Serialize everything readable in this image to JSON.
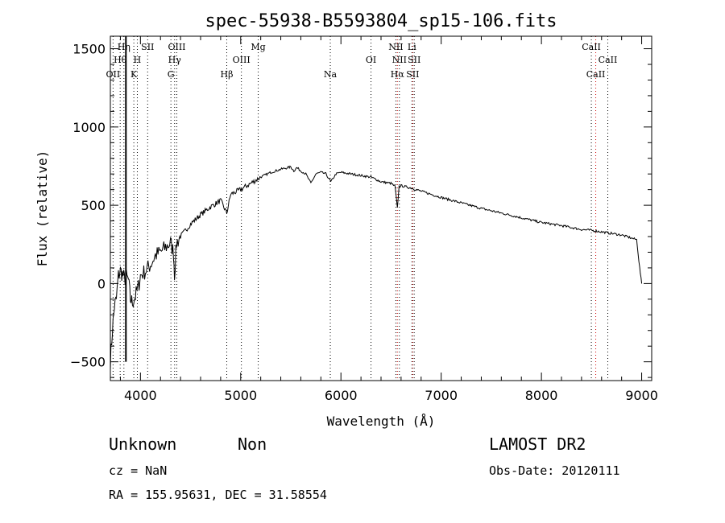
{
  "chart_data": {
    "type": "line",
    "title": "spec-55938-B5593804_sp15-106.fits",
    "xlabel": "Wavelength (Å)",
    "ylabel": "Flux (relative)",
    "xlim": [
      3700,
      9100
    ],
    "ylim": [
      -620,
      1580
    ],
    "xticks": [
      4000,
      5000,
      6000,
      7000,
      8000,
      9000
    ],
    "yticks": [
      -500,
      0,
      500,
      1000,
      1500
    ],
    "grid": false,
    "series": [
      {
        "color": "#000000",
        "x": [
          3700,
          3720,
          3740,
          3760,
          3780,
          3800,
          3820,
          3840,
          3860,
          3880,
          3900,
          3920,
          3950,
          3980,
          4000,
          4050,
          4100,
          4150,
          4200,
          4250,
          4300,
          4330,
          4340,
          4360,
          4400,
          4450,
          4500,
          4600,
          4700,
          4800,
          4861,
          4900,
          5000,
          5100,
          5200,
          5300,
          5400,
          5500,
          5530,
          5560,
          5600,
          5650,
          5700,
          5750,
          5800,
          5850,
          5900,
          5950,
          6000,
          6100,
          6200,
          6300,
          6400,
          6500,
          6540,
          6563,
          6580,
          6600,
          6700,
          6800,
          6900,
          7000,
          7200,
          7400,
          7600,
          7800,
          8000,
          8200,
          8400,
          8500,
          8600,
          8800,
          8950,
          8980,
          9000
        ],
        "y": [
          -500,
          -300,
          -150,
          -100,
          50,
          80,
          60,
          30,
          40,
          20,
          -100,
          -120,
          -80,
          -20,
          50,
          80,
          120,
          180,
          200,
          230,
          260,
          200,
          60,
          260,
          300,
          340,
          380,
          440,
          490,
          530,
          450,
          570,
          600,
          640,
          680,
          710,
          730,
          745,
          720,
          740,
          720,
          700,
          640,
          700,
          710,
          700,
          650,
          700,
          710,
          700,
          690,
          680,
          650,
          640,
          620,
          480,
          620,
          625,
          610,
          590,
          570,
          550,
          515,
          480,
          450,
          420,
          390,
          370,
          345,
          340,
          330,
          310,
          280,
          100,
          0
        ]
      }
    ],
    "lines": [
      {
        "label": "OII",
        "x": 3727,
        "row": 3,
        "color": "#000000"
      },
      {
        "label": "Hθ",
        "x": 3798,
        "row": 2,
        "color": "#000000"
      },
      {
        "label": "Hη",
        "x": 3835,
        "row": 1,
        "color": "#000000"
      },
      {
        "label": "K",
        "x": 3934,
        "row": 3,
        "color": "#000000"
      },
      {
        "label": "H",
        "x": 3969,
        "row": 2,
        "color": "#000000"
      },
      {
        "label": "SII",
        "x": 4072,
        "row": 1,
        "color": "#000000"
      },
      {
        "label": "G",
        "x": 4304,
        "row": 3,
        "color": "#000000"
      },
      {
        "label": "Hγ",
        "x": 4341,
        "row": 2,
        "color": "#000000"
      },
      {
        "label": "OIII",
        "x": 4363,
        "row": 1,
        "color": "#000000"
      },
      {
        "label": "Hβ",
        "x": 4861,
        "row": 3,
        "color": "#000000"
      },
      {
        "label": "OIII",
        "x": 5007,
        "row": 2,
        "color": "#000000"
      },
      {
        "label": "Mg",
        "x": 5175,
        "row": 1,
        "color": "#000000"
      },
      {
        "label": "Na",
        "x": 5894,
        "row": 3,
        "color": "#000000"
      },
      {
        "label": "OI",
        "x": 6300,
        "row": 2,
        "color": "#000000"
      },
      {
        "label": "NII",
        "x": 6548,
        "row": 1,
        "color": "#000000"
      },
      {
        "label": "Hα",
        "x": 6563,
        "row": 3,
        "color": "#cc0000"
      },
      {
        "label": "NII",
        "x": 6583,
        "row": 2,
        "color": "#000000"
      },
      {
        "label": "Li",
        "x": 6708,
        "row": 1,
        "color": "#000000"
      },
      {
        "label": "SII",
        "x": 6716,
        "row": 3,
        "color": "#cc0000"
      },
      {
        "label": "SII",
        "x": 6731,
        "row": 2,
        "color": "#000000"
      },
      {
        "label": "CaII",
        "x": 8498,
        "row": 1,
        "color": "#000000"
      },
      {
        "label": "CaII",
        "x": 8542,
        "row": 3,
        "color": "#cc0000"
      },
      {
        "label": "CaII",
        "x": 8662,
        "row": 2,
        "color": "#000000"
      }
    ],
    "marker_x": 3855
  },
  "info": {
    "class": "Unknown",
    "subclass": "Non",
    "survey": "LAMOST DR2",
    "cz": "cz = NaN",
    "obs_date": "Obs-Date: 20120111",
    "radec": "RA = 155.95631, DEC =  31.58554"
  }
}
